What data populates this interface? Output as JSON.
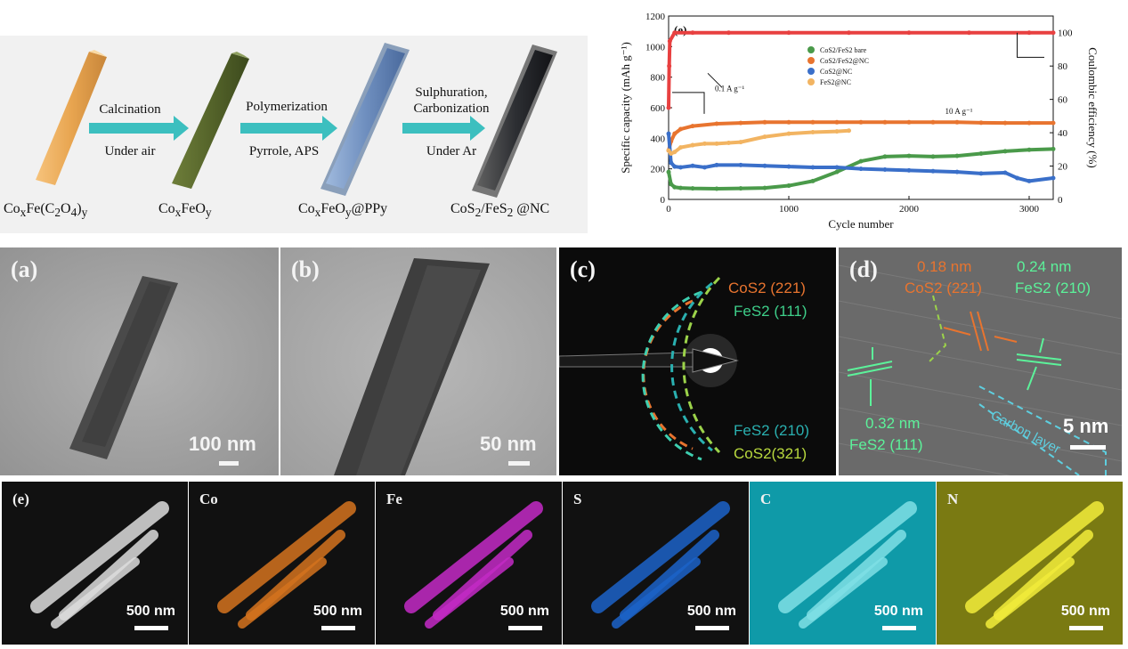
{
  "schematic": {
    "compounds": [
      "CoxFe(C2O4)y",
      "CoxFeOy",
      "CoxFeOy@PPy",
      "CoS2/FeS2 @NC"
    ],
    "steps": [
      {
        "top": "Calcination",
        "bottom": "Under air"
      },
      {
        "top": "Polymerization",
        "bottom": "Pyrrole, APS"
      },
      {
        "top": "Sulphuration,",
        "top2": "Carbonization",
        "bottom": "Under Ar"
      }
    ]
  },
  "chart_data": {
    "type": "scatter",
    "panel_label": "(e)",
    "xlabel": "Cycle number",
    "ylabel_left": "Specific capacity (mAh g⁻¹)",
    "ylabel_right": "Coulombic efficiency (%)",
    "xlim": [
      0,
      3200
    ],
    "ylim_left": [
      0,
      1200
    ],
    "ylim_right": [
      0,
      110
    ],
    "x_ticks": [
      0,
      1000,
      2000,
      3000
    ],
    "y_ticks_left": [
      0,
      200,
      400,
      600,
      800,
      1000,
      1200
    ],
    "y_ticks_right": [
      0,
      20,
      40,
      60,
      80,
      100
    ],
    "legend_position": "top-center",
    "annotations": [
      "0.1 A g⁻¹",
      "10 A g⁻¹"
    ],
    "series": [
      {
        "name": "CoS2/FeS2 bare",
        "color": "#4a9a4a",
        "x": [
          0,
          20,
          50,
          100,
          200,
          400,
          600,
          800,
          1000,
          1200,
          1400,
          1600,
          1800,
          2000,
          2200,
          2400,
          2600,
          2800,
          3000,
          3200
        ],
        "y": [
          180,
          100,
          80,
          75,
          72,
          70,
          72,
          75,
          90,
          120,
          180,
          250,
          280,
          285,
          280,
          285,
          300,
          315,
          325,
          330
        ]
      },
      {
        "name": "CoS2/FeS2@NC",
        "color": "#e8742f",
        "x": [
          0,
          20,
          50,
          100,
          200,
          400,
          600,
          800,
          1000,
          1200,
          1400,
          1600,
          1800,
          2000,
          2200,
          2400,
          2600,
          2800,
          3000,
          3200
        ],
        "y": [
          320,
          380,
          430,
          460,
          480,
          495,
          500,
          505,
          505,
          505,
          505,
          505,
          505,
          505,
          505,
          505,
          502,
          500,
          500,
          500
        ]
      },
      {
        "name": "CoS2@NC",
        "color": "#3a6fc9",
        "x": [
          0,
          20,
          50,
          100,
          200,
          300,
          400,
          600,
          800,
          1000,
          1200,
          1400,
          1600,
          1800,
          2000,
          2200,
          2400,
          2600,
          2800,
          2900,
          3000,
          3200
        ],
        "y": [
          430,
          240,
          215,
          210,
          220,
          210,
          225,
          225,
          220,
          215,
          210,
          210,
          200,
          195,
          190,
          185,
          180,
          170,
          175,
          140,
          120,
          140
        ]
      },
      {
        "name": "FeS2@NC",
        "color": "#f2b462",
        "x": [
          0,
          20,
          50,
          100,
          200,
          300,
          400,
          500,
          600,
          800,
          1000,
          1200,
          1400,
          1500
        ],
        "y": [
          320,
          300,
          310,
          340,
          355,
          365,
          365,
          370,
          375,
          410,
          430,
          440,
          445,
          450
        ]
      },
      {
        "name": "Coulombic efficiency",
        "color": "#e84040",
        "axis": "right",
        "x": [
          0,
          5,
          10,
          50,
          200,
          500,
          1000,
          1500,
          2000,
          2500,
          3000,
          3200
        ],
        "y": [
          55,
          80,
          95,
          100,
          100,
          100,
          100,
          100,
          100,
          100,
          100,
          100
        ]
      }
    ]
  },
  "tem": {
    "a": {
      "label": "(a)",
      "scale": "100 nm"
    },
    "b": {
      "label": "(b)",
      "scale": "50 nm"
    },
    "c": {
      "label": "(c)",
      "rings": [
        "CoS2 (221)",
        "FeS2 (111)",
        "FeS2 (210)",
        "CoS2(321)"
      ]
    },
    "d": {
      "label": "(d)",
      "spacing1": "0.18 nm",
      "plane1": "CoS2 (221)",
      "spacing2": "0.24 nm",
      "plane2": "FeS2 (210)",
      "spacing3": "0.32 nm",
      "plane3": "FeS2 (111)",
      "layer": "Carbon layer",
      "scale": "5 nm"
    }
  },
  "maps": [
    {
      "label": "(e)",
      "scale": "500 nm",
      "bg": "#111111",
      "color": "#dddddd"
    },
    {
      "label": "Co",
      "scale": "500 nm",
      "bg": "#111111",
      "color": "#d4731e"
    },
    {
      "label": "Fe",
      "scale": "500 nm",
      "bg": "#111111",
      "color": "#c42ac6"
    },
    {
      "label": "S",
      "scale": "500 nm",
      "bg": "#111111",
      "color": "#1c63c9"
    },
    {
      "label": "C",
      "scale": "500 nm",
      "bg": "#0f9aa8",
      "color": "#7fe0e6"
    },
    {
      "label": "N",
      "scale": "500 nm",
      "bg": "#7a7a12",
      "color": "#f2ec3a"
    }
  ]
}
